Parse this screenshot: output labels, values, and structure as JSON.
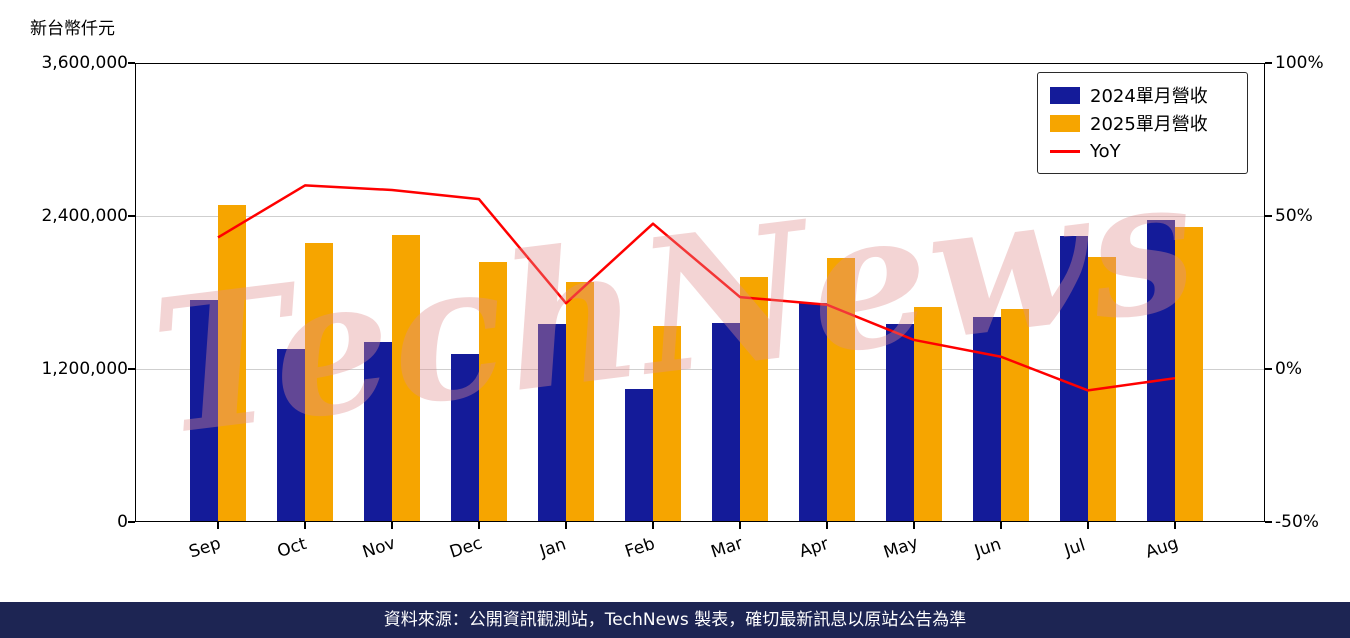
{
  "page": {
    "unit_label": "新台幣仟元",
    "watermark": "TechNews",
    "watermark_color": "#e08f8f",
    "footer": "資料來源：公開資訊觀測站，TechNews 製表，確切最新訊息以原站公告為準",
    "footer_bg": "#1d2553"
  },
  "chart_data": {
    "type": "bar",
    "title": "",
    "categories": [
      "Sep",
      "Oct",
      "Nov",
      "Dec",
      "Jan",
      "Feb",
      "Mar",
      "Apr",
      "May",
      "Jun",
      "Jul",
      "Aug"
    ],
    "series": [
      {
        "key": "2024",
        "name": "2024單月營收",
        "type": "bar",
        "axis": "left",
        "color": "#141b99",
        "values": [
          1740000,
          1360000,
          1410000,
          1320000,
          1550000,
          1040000,
          1560000,
          1720000,
          1550000,
          1610000,
          2240000,
          2370000
        ]
      },
      {
        "key": "2025",
        "name": "2025單月營收",
        "type": "bar",
        "axis": "left",
        "color": "#f6a500",
        "values": [
          2490000,
          2190000,
          2250000,
          2040000,
          1880000,
          1540000,
          1920000,
          2070000,
          1690000,
          1670000,
          2080000,
          2310000
        ]
      },
      {
        "key": "yoy",
        "name": "YoY",
        "type": "line",
        "axis": "right",
        "color": "#ff0000",
        "values": [
          43,
          60,
          58.5,
          55.5,
          21.5,
          47.5,
          23.5,
          21,
          9.5,
          4,
          -7,
          -3
        ]
      }
    ],
    "left_axis": {
      "label": "新台幣仟元",
      "min": 0,
      "max": 3600000,
      "ticks": [
        0,
        1200000,
        2400000,
        3600000
      ]
    },
    "right_axis": {
      "label": "YoY %",
      "min": -50,
      "max": 100,
      "ticks": [
        -50,
        0,
        50,
        100
      ],
      "suffix": "%"
    },
    "grid": true,
    "legend_position": "top-right"
  }
}
